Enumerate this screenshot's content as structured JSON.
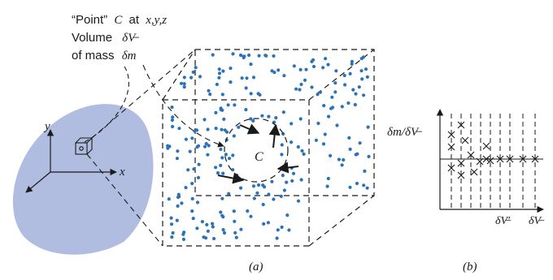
{
  "colors": {
    "region_fill": "#b1bde0",
    "molecule": "#2b73b8",
    "ink": "#1a1a1a"
  },
  "left_label": {
    "line1_text": "“Point”",
    "line1_point": "C",
    "line1_at": "at",
    "line1_coords": "x,y,z",
    "line2_text": "Volume",
    "line2_symbol": "δV̶",
    "line3_text": "of mass",
    "line3_symbol": "δm"
  },
  "axes_a": {
    "x": "x",
    "y": "y"
  },
  "cube": {
    "point_label": "C"
  },
  "graph_b": {
    "ylabel": "δm/δV̶",
    "tick1": "δV̶′",
    "tick2": "δV̶"
  },
  "captions": {
    "a": "(a)",
    "b": "(b)"
  }
}
